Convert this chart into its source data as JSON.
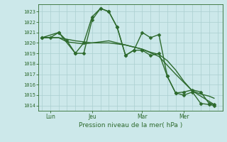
{
  "bg_color": "#cce8ea",
  "grid_color": "#aacfcf",
  "line_color": "#2d6a2d",
  "marker_color": "#2d6a2d",
  "ylabel_ticks": [
    1014,
    1015,
    1016,
    1017,
    1018,
    1019,
    1020,
    1021,
    1022,
    1023
  ],
  "xtick_labels": [
    "Lun",
    "Jeu",
    "Mar",
    "Mer"
  ],
  "xtick_positions": [
    0.5,
    3.0,
    6.0,
    8.5
  ],
  "xlabel": "Pression niveau de la mer( hPa )",
  "ylim": [
    1013.5,
    1023.7
  ],
  "xlim": [
    -0.2,
    10.8
  ],
  "series": [
    {
      "x": [
        0.0,
        0.5,
        1.0,
        1.5,
        2.0,
        2.5,
        3.0,
        3.5,
        4.0,
        4.5,
        5.0,
        5.5,
        6.0,
        6.5,
        7.0,
        7.5,
        8.0,
        8.5,
        9.0,
        9.5,
        10.0,
        10.3
      ],
      "y": [
        1020.5,
        1020.5,
        1021.0,
        1020.2,
        1019.0,
        1020.0,
        1022.5,
        1023.3,
        1023.0,
        1021.5,
        1018.8,
        1019.3,
        1019.3,
        1018.8,
        1019.0,
        1016.8,
        1015.2,
        1015.0,
        1015.3,
        1014.2,
        1014.1,
        1014.0
      ],
      "lw": 1.0,
      "ms": 2.5,
      "marker": "D"
    },
    {
      "x": [
        0.0,
        0.5,
        1.0,
        1.5,
        2.0,
        2.5,
        3.0,
        3.5,
        4.0,
        4.5,
        5.0,
        5.5,
        6.0,
        6.5,
        7.0,
        7.5,
        8.0,
        8.5,
        9.0,
        9.5,
        10.0,
        10.3
      ],
      "y": [
        1020.5,
        1020.5,
        1020.5,
        1020.1,
        1020.0,
        1019.9,
        1020.0,
        1020.1,
        1020.2,
        1020.0,
        1019.8,
        1019.6,
        1019.4,
        1019.1,
        1018.9,
        1018.3,
        1017.4,
        1016.3,
        1015.4,
        1015.1,
        1014.9,
        1014.7
      ],
      "lw": 1.0,
      "ms": 0,
      "marker": "none"
    },
    {
      "x": [
        0.0,
        1.0,
        2.0,
        2.5,
        3.0,
        3.5,
        4.0,
        4.5,
        5.0,
        5.5,
        6.0,
        6.5,
        7.0,
        7.5,
        8.0,
        8.5,
        9.0,
        9.5,
        10.0,
        10.3
      ],
      "y": [
        1020.5,
        1021.0,
        1019.0,
        1019.0,
        1022.2,
        1023.3,
        1023.0,
        1021.5,
        1018.8,
        1019.3,
        1021.0,
        1020.5,
        1020.8,
        1016.8,
        1015.2,
        1015.3,
        1015.5,
        1015.3,
        1014.2,
        1014.1
      ],
      "lw": 1.0,
      "ms": 2.5,
      "marker": "D"
    },
    {
      "x": [
        0.0,
        1.0,
        2.0,
        3.0,
        4.0,
        5.0,
        6.0,
        7.0,
        8.0,
        9.0,
        10.0,
        10.3
      ],
      "y": [
        1020.5,
        1020.5,
        1020.2,
        1020.0,
        1020.0,
        1019.8,
        1019.4,
        1018.7,
        1017.0,
        1015.4,
        1014.4,
        1014.1
      ],
      "lw": 1.0,
      "ms": 0,
      "marker": "none"
    }
  ]
}
